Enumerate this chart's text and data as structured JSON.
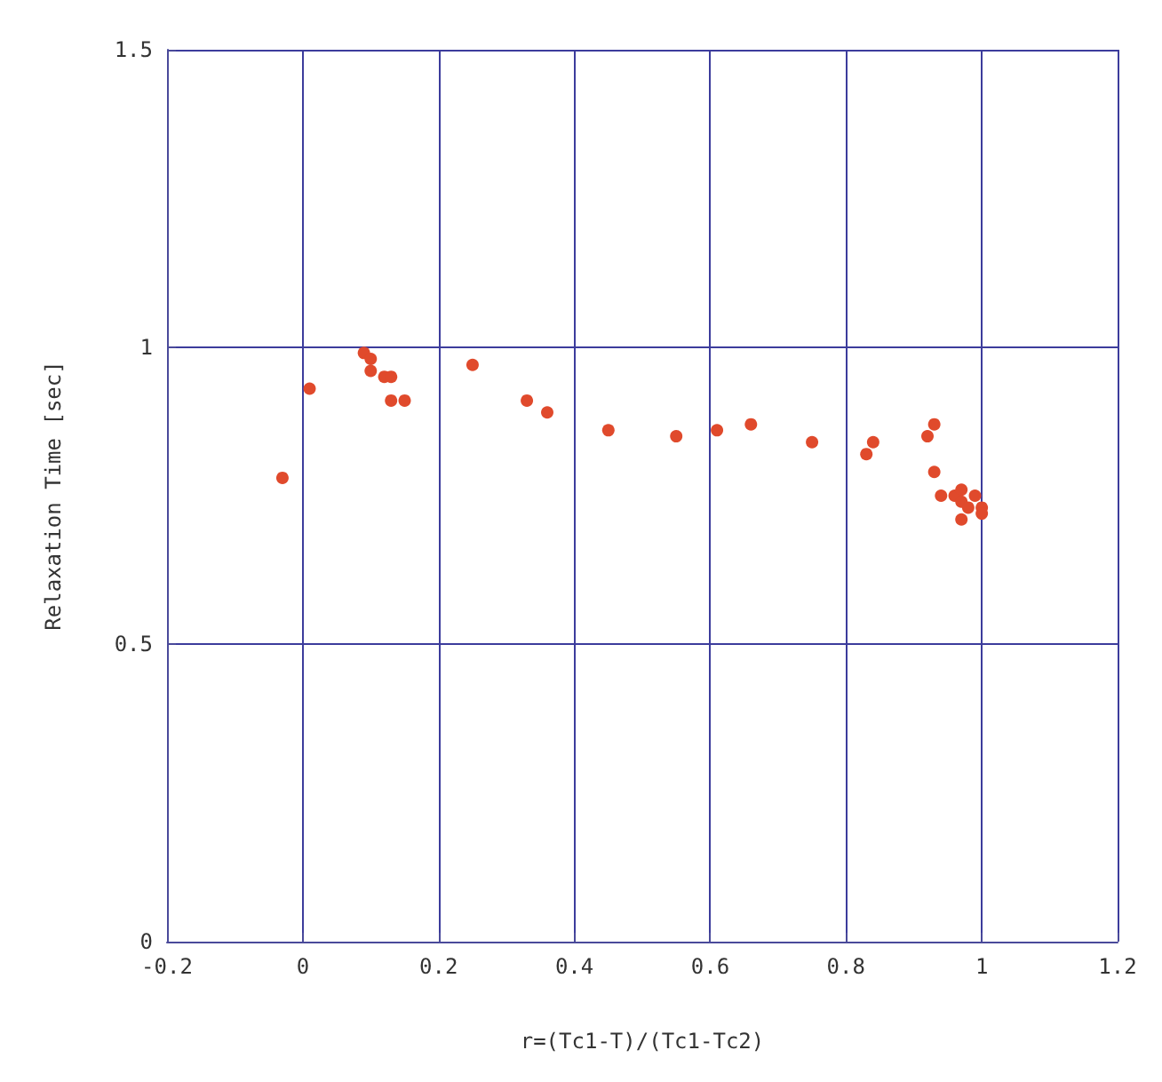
{
  "chart_data": {
    "type": "scatter",
    "xlabel": "r=(Tc1-T)/(Tc1-Tc2)",
    "ylabel": "Relaxation Time [sec]",
    "x": [
      -0.03,
      0.01,
      0.09,
      0.1,
      0.1,
      0.12,
      0.13,
      0.13,
      0.15,
      0.25,
      0.33,
      0.36,
      0.45,
      0.55,
      0.61,
      0.66,
      0.75,
      0.83,
      0.84,
      0.92,
      0.93,
      0.93,
      0.94,
      0.96,
      0.97,
      0.97,
      0.98,
      0.99,
      1.0,
      0.97,
      1.0
    ],
    "series": [
      {
        "color": "#e04a2c",
        "values": [
          0.78,
          0.93,
          0.99,
          0.98,
          0.96,
          0.95,
          0.95,
          0.91,
          0.91,
          0.97,
          0.91,
          0.89,
          0.86,
          0.85,
          0.86,
          0.87,
          0.84,
          0.82,
          0.84,
          0.85,
          0.87,
          0.79,
          0.75,
          0.75,
          0.76,
          0.74,
          0.73,
          0.75,
          0.73,
          0.71,
          0.72
        ]
      }
    ],
    "xlim": [
      -0.2,
      1.2
    ],
    "xticks": [
      -0.2,
      0,
      0.2,
      0.4,
      0.6,
      0.8,
      1,
      1.2
    ],
    "ylim": [
      0,
      1.5
    ],
    "yticks": [
      0,
      0.5,
      1,
      1.5
    ],
    "grid": true,
    "marker": "circle"
  }
}
